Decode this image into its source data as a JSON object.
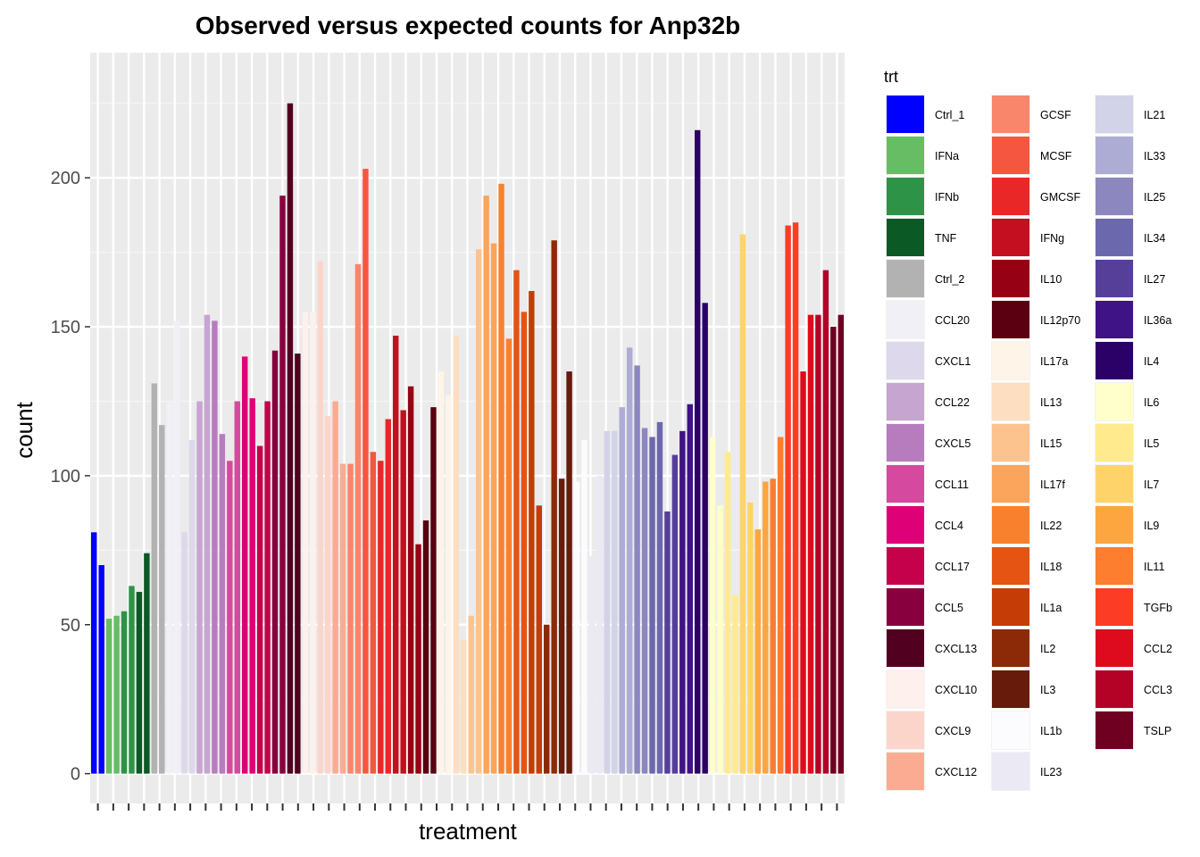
{
  "chart_data": {
    "type": "bar",
    "title": "Observed versus expected counts for Anp32b",
    "xlabel": "treatment",
    "ylabel": "count",
    "ylim": [
      -10,
      242
    ],
    "yticks": [
      0,
      50,
      100,
      150,
      200
    ],
    "grid": true,
    "legend": {
      "title": "trt",
      "placement": "right"
    },
    "x_tick_count": 49,
    "series": [
      {
        "name": "Ctrl_1",
        "color": "#0000FF",
        "values": [
          81,
          70
        ]
      },
      {
        "name": "IFNa",
        "color": "#66BD63",
        "values": [
          52,
          53
        ]
      },
      {
        "name": "IFNb",
        "color": "#2D9346",
        "values": [
          54.5,
          63
        ]
      },
      {
        "name": "TNF",
        "color": "#0B5924",
        "values": [
          61,
          74
        ]
      },
      {
        "name": "Ctrl_2",
        "color": "#B2B2B2",
        "values": [
          131,
          117
        ]
      },
      {
        "name": "CCL20",
        "color": "#F2F0F7",
        "values": [
          125,
          152
        ]
      },
      {
        "name": "CXCL1",
        "color": "#DDD8EB",
        "values": [
          81,
          112
        ]
      },
      {
        "name": "CCL22",
        "color": "#C7A5D1",
        "values": [
          125,
          154
        ]
      },
      {
        "name": "CXCL5",
        "color": "#B77CBE",
        "values": [
          152,
          114
        ]
      },
      {
        "name": "CCL11",
        "color": "#D54A9E",
        "values": [
          105,
          125
        ]
      },
      {
        "name": "CCL4",
        "color": "#DE0077",
        "values": [
          140,
          126
        ]
      },
      {
        "name": "CCL17",
        "color": "#C5014B",
        "values": [
          110,
          125
        ]
      },
      {
        "name": "CCL5",
        "color": "#88003D",
        "values": [
          142,
          194
        ]
      },
      {
        "name": "CXCL13",
        "color": "#520020",
        "values": [
          225,
          141
        ]
      },
      {
        "name": "CXCL10",
        "color": "#FEF0EC",
        "values": [
          155,
          155
        ]
      },
      {
        "name": "CXCL9",
        "color": "#FCD5CA",
        "values": [
          172,
          120
        ]
      },
      {
        "name": "CXCL12",
        "color": "#FBAB91",
        "values": [
          125,
          104
        ]
      },
      {
        "name": "GCSF",
        "color": "#F9856B",
        "values": [
          104,
          171
        ]
      },
      {
        "name": "MCSF",
        "color": "#F5563F",
        "values": [
          203,
          108
        ]
      },
      {
        "name": "GMCSF",
        "color": "#E92727",
        "values": [
          105,
          119
        ]
      },
      {
        "name": "IFNg",
        "color": "#C30F1F",
        "values": [
          147,
          122
        ]
      },
      {
        "name": "IL10",
        "color": "#960213",
        "values": [
          130,
          77
        ]
      },
      {
        "name": "IL12p70",
        "color": "#5B0011",
        "values": [
          85,
          123
        ]
      },
      {
        "name": "IL17a",
        "color": "#FFF4E8",
        "values": [
          135,
          127
        ]
      },
      {
        "name": "IL13",
        "color": "#FDDEC0",
        "values": [
          147,
          45
        ]
      },
      {
        "name": "IL15",
        "color": "#FDC38E",
        "values": [
          53,
          176
        ]
      },
      {
        "name": "IL17f",
        "color": "#FBA45C",
        "values": [
          194,
          178
        ]
      },
      {
        "name": "IL22",
        "color": "#F9812D",
        "values": [
          198,
          146
        ]
      },
      {
        "name": "IL18",
        "color": "#E55413",
        "values": [
          169,
          155
        ]
      },
      {
        "name": "IL1a",
        "color": "#C53C07",
        "values": [
          162,
          90
        ]
      },
      {
        "name": "IL2",
        "color": "#8C2A07",
        "values": [
          50,
          179
        ]
      },
      {
        "name": "IL3",
        "color": "#671B0A",
        "values": [
          99,
          135
        ]
      },
      {
        "name": "IL1b",
        "color": "#FCFBFD",
        "values": [
          98,
          112
        ]
      },
      {
        "name": "IL23",
        "color": "#EBE9F3",
        "values": [
          73,
          100
        ]
      },
      {
        "name": "IL21",
        "color": "#D2D2E8",
        "values": [
          115,
          115
        ]
      },
      {
        "name": "IL33",
        "color": "#ACACD4",
        "values": [
          123,
          143
        ]
      },
      {
        "name": "IL25",
        "color": "#8D87C0",
        "values": [
          137,
          116
        ]
      },
      {
        "name": "IL34",
        "color": "#6C68AE",
        "values": [
          113,
          118
        ]
      },
      {
        "name": "IL27",
        "color": "#553F99",
        "values": [
          88,
          107
        ]
      },
      {
        "name": "IL36a",
        "color": "#3F1286",
        "values": [
          115,
          124
        ]
      },
      {
        "name": "IL4",
        "color": "#2B0067",
        "values": [
          216,
          158
        ]
      },
      {
        "name": "IL6",
        "color": "#FFFFCC",
        "values": [
          113,
          90
        ]
      },
      {
        "name": "IL5",
        "color": "#FFEB8E",
        "values": [
          108,
          60
        ]
      },
      {
        "name": "IL7",
        "color": "#FED46A",
        "values": [
          181,
          91
        ]
      },
      {
        "name": "IL9",
        "color": "#FDA53F",
        "values": [
          82,
          98
        ]
      },
      {
        "name": "IL11",
        "color": "#FC7E2E",
        "values": [
          99,
          113
        ]
      },
      {
        "name": "TGFb",
        "color": "#FC3C25",
        "values": [
          184,
          185
        ]
      },
      {
        "name": "CCL2",
        "color": "#DE0A1E",
        "values": [
          135,
          154
        ]
      },
      {
        "name": "CCL3",
        "color": "#B40126",
        "values": [
          154,
          169
        ]
      },
      {
        "name": "TSLP",
        "color": "#700021",
        "values": [
          150,
          154
        ]
      }
    ]
  }
}
